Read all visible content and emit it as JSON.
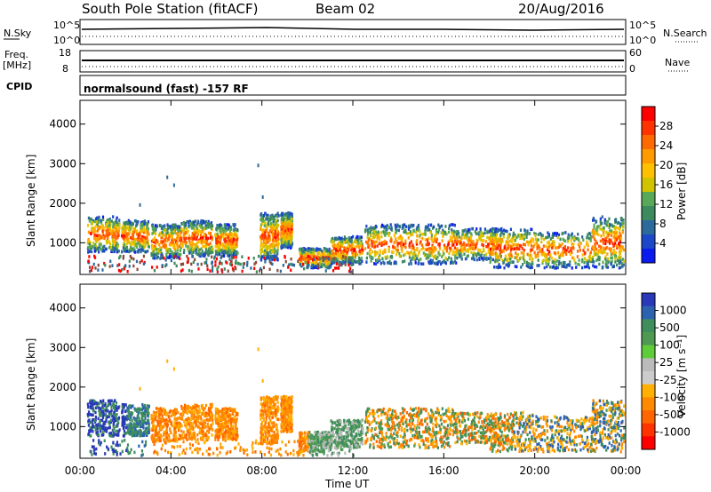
{
  "header": {
    "station": "South Pole Station (fitACF)",
    "beam": "Beam 02",
    "date": "20/Aug/2016"
  },
  "strips": {
    "nsky_label": "N.Sky",
    "nsky_top": "10^5",
    "nsky_bottom": "10^0",
    "nsearch_label": "N.Search",
    "nsearch_top": "10^5",
    "nsearch_bottom": "10^0",
    "freq_label_1": "Freq.",
    "freq_label_2": "[MHz]",
    "freq_top": "18",
    "freq_bottom": "8",
    "nave_label": "Nave",
    "nave_top": "60",
    "nave_bottom": "0",
    "cpid_label": "CPID",
    "cpid_text": "normalsound (fast) -157 RF"
  },
  "chart_data": [
    {
      "type": "heatmap",
      "name": "power",
      "ylabel": "Slant Range [km]",
      "colorbar_label": "Power [dB]",
      "colorbar_ticks": [
        "28",
        "24",
        "20",
        "16",
        "12",
        "8",
        "4"
      ],
      "colorbar_colors": [
        "#ff0000",
        "#ff3300",
        "#ff6a00",
        "#ff9a00",
        "#ffc000",
        "#d2c300",
        "#58a857",
        "#3c8a5d",
        "#2b6a9c",
        "#1b47c8",
        "#0b1bf0"
      ],
      "ylim": [
        200,
        4600
      ],
      "yticks": [
        "1000",
        "2000",
        "3000",
        "4000"
      ],
      "xlim": [
        0,
        24
      ],
      "grid": false
    },
    {
      "type": "heatmap",
      "name": "velocity",
      "ylabel": "Slant Range [km]",
      "colorbar_label": "Velocity [m s⁻¹]",
      "colorbar_ticks": [
        "1000",
        "500",
        "100",
        "25",
        "-25",
        "-100",
        "-500",
        "-1000"
      ],
      "colorbar_colors": [
        "#2838b8",
        "#2c62b0",
        "#3f8e5e",
        "#4f9a52",
        "#5fcc3a",
        "#bbbbbb",
        "#cccccc",
        "#ffb000",
        "#ff8a00",
        "#ff6600",
        "#ff3300",
        "#ff0000"
      ],
      "ylim": [
        200,
        4600
      ],
      "yticks": [
        "1000",
        "2000",
        "3000",
        "4000"
      ],
      "xlim": [
        0,
        24
      ],
      "grid": false
    }
  ],
  "xaxis": {
    "label": "Time UT",
    "ticks": [
      "00:00",
      "04:00",
      "08:00",
      "12:00",
      "16:00",
      "20:00",
      "00:00"
    ]
  }
}
